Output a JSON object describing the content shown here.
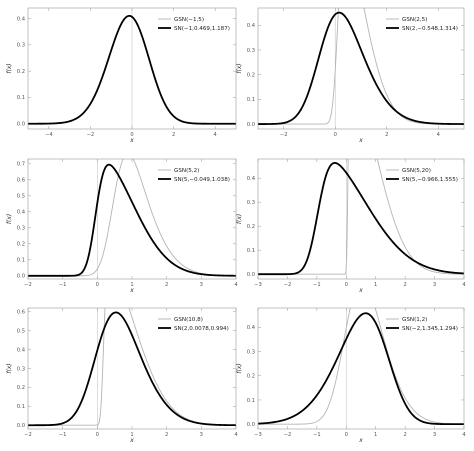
{
  "chart_data": [
    {
      "type": "line",
      "xlabel": "x",
      "ylabel": "f(x)",
      "xlim": [
        -5,
        5
      ],
      "ylim": [
        -0.02,
        0.44
      ],
      "xticks": [
        -4,
        -2,
        0,
        2,
        4
      ],
      "yticks": [
        0.0,
        0.1,
        0.2,
        0.3,
        0.4
      ],
      "xtick_labels": [
        "−4",
        "−2",
        "0",
        "2",
        "4"
      ],
      "ytick_labels": [
        "0.0",
        "0.1",
        "0.2",
        "0.3",
        "0.4"
      ],
      "legend_position": "top-right",
      "series": [
        {
          "name": "GSN(−1,5)",
          "model": "gsn",
          "p": [
            -1,
            5
          ],
          "color": "#b4b4b4"
        },
        {
          "name": "SN(−1,0.469,1.187)",
          "model": "sn",
          "p": [
            -1.0,
            0.469,
            1.187
          ],
          "color": "#000000"
        }
      ]
    },
    {
      "type": "line",
      "xlabel": "x",
      "ylabel": "f(x)",
      "xlim": [
        -3,
        5
      ],
      "ylim": [
        -0.02,
        0.47
      ],
      "xticks": [
        -2,
        0,
        2,
        4
      ],
      "yticks": [
        0.0,
        0.1,
        0.2,
        0.3,
        0.4
      ],
      "xtick_labels": [
        "−2",
        "0",
        "2",
        "4"
      ],
      "ytick_labels": [
        "0.0",
        "0.1",
        "0.2",
        "0.3",
        "0.4"
      ],
      "legend_position": "top-right",
      "series": [
        {
          "name": "GSN(2,5)",
          "model": "gsn",
          "p": [
            2,
            5
          ],
          "color": "#b4b4b4"
        },
        {
          "name": "SN(2,−0.548,1.314)",
          "model": "sn",
          "p": [
            2.0,
            -0.548,
            1.314
          ],
          "color": "#000000"
        }
      ]
    },
    {
      "type": "line",
      "xlabel": "x",
      "ylabel": "f(x)",
      "xlim": [
        -2,
        4
      ],
      "ylim": [
        -0.02,
        0.73
      ],
      "xticks": [
        -2,
        -1,
        0,
        1,
        2,
        3,
        4
      ],
      "yticks": [
        0.0,
        0.1,
        0.2,
        0.3,
        0.4,
        0.5,
        0.6,
        0.7
      ],
      "xtick_labels": [
        "−2",
        "−1",
        "0",
        "1",
        "2",
        "3",
        "4"
      ],
      "ytick_labels": [
        "0.0",
        "0.1",
        "0.2",
        "0.3",
        "0.4",
        "0.5",
        "0.6",
        "0.7"
      ],
      "legend_position": "top-right",
      "series": [
        {
          "name": "GSN(5,2)",
          "model": "gsn",
          "p": [
            5,
            2
          ],
          "color": "#b4b4b4"
        },
        {
          "name": "SN(5,−0.049,1.038)",
          "model": "sn",
          "p": [
            5.0,
            -0.049,
            1.038
          ],
          "color": "#000000"
        }
      ]
    },
    {
      "type": "line",
      "xlabel": "x",
      "ylabel": "f(x)",
      "xlim": [
        -3,
        4
      ],
      "ylim": [
        -0.02,
        0.48
      ],
      "xticks": [
        -3,
        -2,
        -1,
        0,
        1,
        2,
        3,
        4
      ],
      "yticks": [
        0.0,
        0.1,
        0.2,
        0.3,
        0.4
      ],
      "xtick_labels": [
        "−3",
        "−2",
        "−1",
        "0",
        "1",
        "2",
        "3",
        "4"
      ],
      "ytick_labels": [
        "0.0",
        "0.1",
        "0.2",
        "0.3",
        "0.4"
      ],
      "legend_position": "top-right",
      "series": [
        {
          "name": "GSN(5,20)",
          "model": "gsn",
          "p": [
            5,
            20
          ],
          "color": "#b4b4b4"
        },
        {
          "name": "SN(5,−0.966,1.555)",
          "model": "sn",
          "p": [
            5.0,
            -0.966,
            1.555
          ],
          "color": "#000000"
        }
      ]
    },
    {
      "type": "line",
      "xlabel": "x",
      "ylabel": "f(x)",
      "xlim": [
        -2,
        4
      ],
      "ylim": [
        -0.02,
        0.62
      ],
      "xticks": [
        -2,
        -1,
        0,
        1,
        2,
        3,
        4
      ],
      "yticks": [
        0.0,
        0.1,
        0.2,
        0.3,
        0.4,
        0.5,
        0.6
      ],
      "xtick_labels": [
        "−2",
        "−1",
        "0",
        "1",
        "2",
        "3",
        "4"
      ],
      "ytick_labels": [
        "0.0",
        "0.1",
        "0.2",
        "0.3",
        "0.4",
        "0.5",
        "0.6"
      ],
      "legend_position": "top-right",
      "series": [
        {
          "name": "GSN(10,8)",
          "model": "gsn",
          "p": [
            10,
            8
          ],
          "color": "#b4b4b4"
        },
        {
          "name": "SN(2,0.0078,0.994)",
          "model": "sn",
          "p": [
            2.0,
            0.0078,
            0.994
          ],
          "color": "#000000"
        }
      ]
    },
    {
      "type": "line",
      "xlabel": "x",
      "ylabel": "f(x)",
      "xlim": [
        -3,
        4
      ],
      "ylim": [
        -0.02,
        0.48
      ],
      "xticks": [
        -3,
        -2,
        -1,
        0,
        1,
        2,
        3,
        4
      ],
      "yticks": [
        0.0,
        0.1,
        0.2,
        0.3,
        0.4
      ],
      "xtick_labels": [
        "−3",
        "−2",
        "−1",
        "0",
        "1",
        "2",
        "3",
        "4"
      ],
      "ytick_labels": [
        "0.0",
        "0.1",
        "0.2",
        "0.3",
        "0.4"
      ],
      "legend_position": "top-right",
      "series": [
        {
          "name": "GSN(1,2)",
          "model": "gsn",
          "p": [
            1,
            2
          ],
          "color": "#b4b4b4"
        },
        {
          "name": "SN(−2,1.345,1.294)",
          "model": "sn",
          "p": [
            -2.0,
            1.345,
            1.294
          ],
          "color": "#000000"
        }
      ]
    }
  ]
}
